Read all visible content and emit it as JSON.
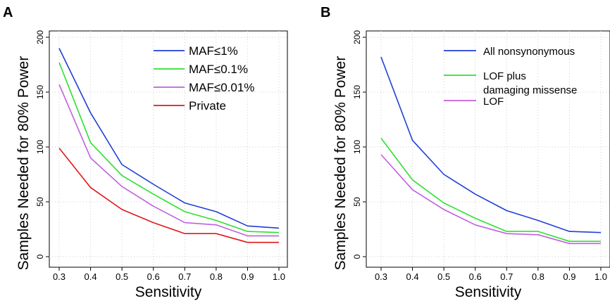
{
  "chart_data": [
    {
      "panel_label": "A",
      "type": "line",
      "xlabel": "Sensitivity",
      "ylabel": "Samples Needed for 80% Power",
      "xlim": [
        0.3,
        1.0
      ],
      "ylim": [
        0,
        200
      ],
      "x": [
        0.3,
        0.4,
        0.5,
        0.6,
        0.7,
        0.8,
        0.9,
        1.0
      ],
      "x_ticks": [
        "0.3",
        "0.4",
        "0.5",
        "0.6",
        "0.7",
        "0.8",
        "0.9",
        "1.0"
      ],
      "y_ticks": [
        0,
        50,
        100,
        150,
        200
      ],
      "y_tick_labels": [
        "0",
        "50",
        "100",
        "150",
        "200"
      ],
      "grid": true,
      "legend_position": "top-right",
      "series": [
        {
          "name": "MAF≤1%",
          "color": "#1f3fd6",
          "values": [
            190,
            131,
            84,
            66,
            49,
            41,
            28,
            26
          ]
        },
        {
          "name": "MAF≤0.1%",
          "color": "#2ee02e",
          "values": [
            177,
            104,
            74,
            57,
            41,
            33,
            23,
            22
          ]
        },
        {
          "name": "MAF≤0.01%",
          "color": "#c060e0",
          "values": [
            157,
            90,
            64,
            46,
            31,
            29,
            19,
            19
          ]
        },
        {
          "name": "Private",
          "color": "#e01818",
          "values": [
            99,
            63,
            43,
            31,
            21,
            21,
            13,
            13
          ]
        }
      ]
    },
    {
      "panel_label": "B",
      "type": "line",
      "xlabel": "Sensitivity",
      "ylabel": "Samples Needed for 80% Power",
      "xlim": [
        0.3,
        1.0
      ],
      "ylim": [
        0,
        200
      ],
      "x": [
        0.3,
        0.4,
        0.5,
        0.6,
        0.7,
        0.8,
        0.9,
        1.0
      ],
      "x_ticks": [
        "0.3",
        "0.4",
        "0.5",
        "0.6",
        "0.7",
        "0.8",
        "0.9",
        "1.0"
      ],
      "y_ticks": [
        0,
        50,
        100,
        150,
        200
      ],
      "y_tick_labels": [
        "0",
        "50",
        "100",
        "150",
        "200"
      ],
      "grid": true,
      "legend_position": "top-right",
      "series": [
        {
          "name": "All nonsynonymous",
          "color": "#1f3fd6",
          "values": [
            182,
            106,
            75,
            57,
            42,
            33,
            23,
            22
          ]
        },
        {
          "name": "LOF plus damaging missense",
          "legend_lines": [
            "LOF plus",
            "damaging missense"
          ],
          "color": "#2ee02e",
          "values": [
            108,
            70,
            49,
            35,
            23,
            23,
            14,
            14
          ]
        },
        {
          "name": "LOF",
          "color": "#c060e0",
          "values": [
            93,
            61,
            43,
            29,
            21,
            20,
            12,
            12
          ]
        }
      ]
    }
  ]
}
